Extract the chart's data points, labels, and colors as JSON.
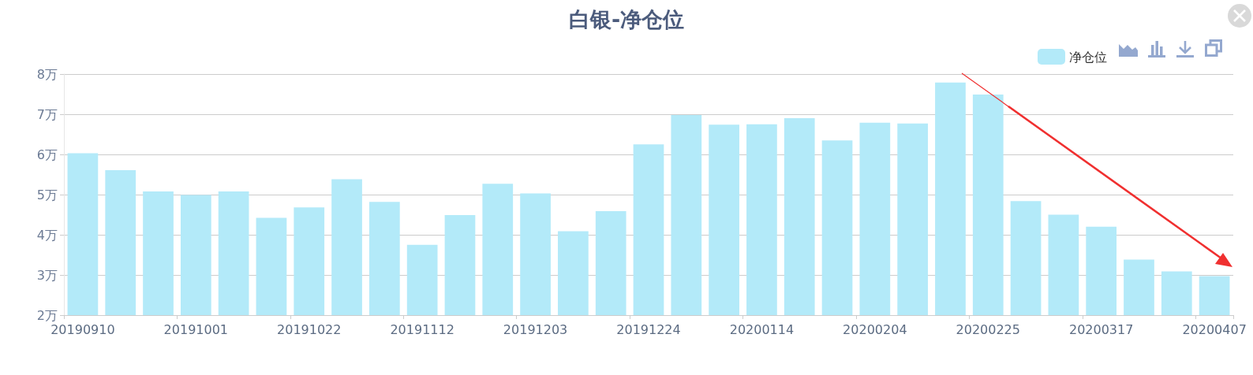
{
  "chart_data": {
    "type": "bar",
    "title": "白银-净仓位",
    "categories": [
      "20190910",
      null,
      null,
      "20191001",
      null,
      null,
      "20191022",
      null,
      null,
      "20191112",
      null,
      null,
      "20191203",
      null,
      null,
      "20191224",
      null,
      null,
      "20200114",
      null,
      null,
      "20200204",
      null,
      null,
      "20200225",
      null,
      null,
      "20200317",
      null,
      null,
      "20200407"
    ],
    "series": [
      {
        "name": "净仓位",
        "color": "#b3eaf9",
        "values": [
          6.03,
          5.61,
          5.08,
          4.99,
          5.08,
          4.42,
          4.68,
          5.38,
          4.82,
          3.75,
          4.49,
          5.27,
          5.03,
          4.09,
          4.59,
          6.25,
          6.98,
          6.74,
          6.75,
          6.9,
          6.35,
          6.79,
          6.77,
          7.79,
          7.49,
          4.84,
          4.5,
          4.2,
          3.38,
          3.09,
          2.97
        ]
      }
    ],
    "ylim": [
      2,
      8
    ],
    "yticks": [
      {
        "value": 2,
        "label": "2万"
      },
      {
        "value": 3,
        "label": "3万"
      },
      {
        "value": 4,
        "label": "4万"
      },
      {
        "value": 5,
        "label": "5万"
      },
      {
        "value": 6,
        "label": "6万"
      },
      {
        "value": 7,
        "label": "7万"
      },
      {
        "value": 8,
        "label": "8万"
      }
    ],
    "grid": "y",
    "legend": "top right"
  }
}
